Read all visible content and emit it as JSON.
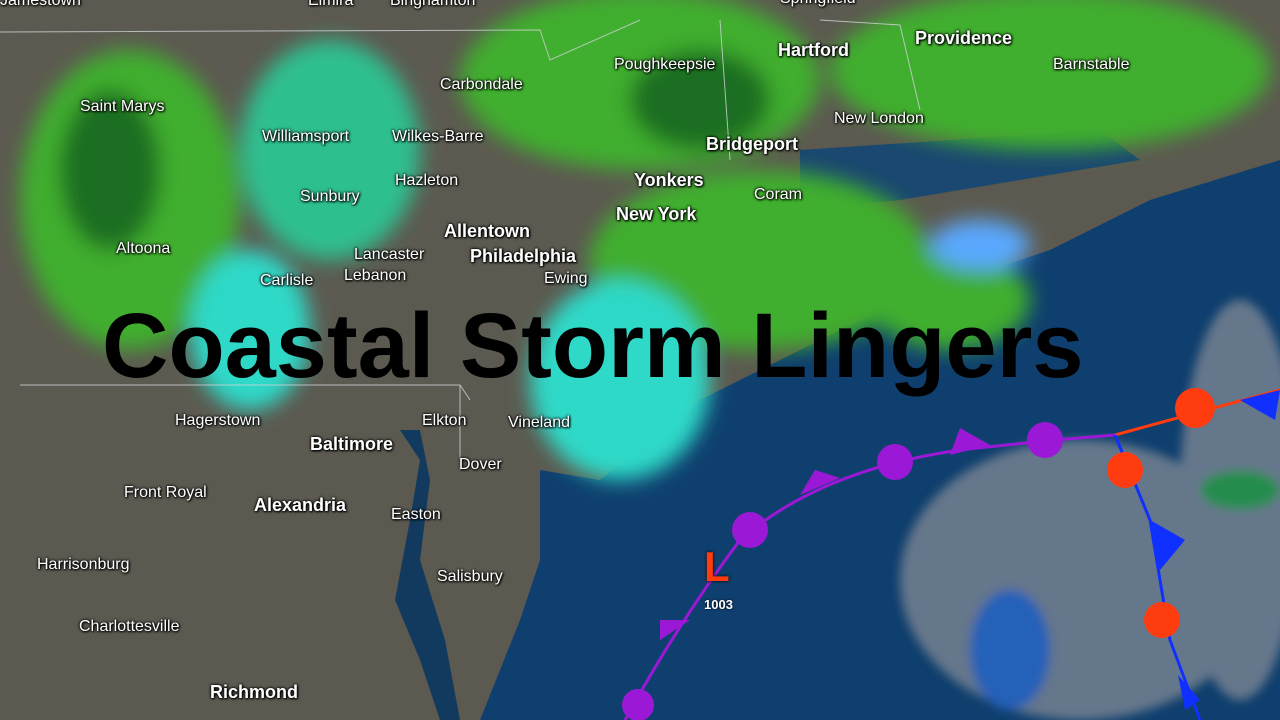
{
  "title": "Coastal Storm Lingers",
  "low_pressure": {
    "symbol": "L",
    "pressure": "1003",
    "color": "#ff3b10"
  },
  "colors": {
    "land": "#5c5a50",
    "ocean": "#0f3f6e",
    "occluded_front": "#9b19d6",
    "warm_front": "#ff3b10",
    "cold_front": "#1030ff",
    "radar_light": "#2fd9c8",
    "radar_moderate": "#3fae2f",
    "radar_heavy": "#1f6e20"
  },
  "cities": [
    {
      "name": "Jamestown",
      "major": false
    },
    {
      "name": "Elmira",
      "major": false
    },
    {
      "name": "Binghamton",
      "major": false
    },
    {
      "name": "Springfield",
      "major": false
    },
    {
      "name": "Hartford",
      "major": true
    },
    {
      "name": "Providence",
      "major": true
    },
    {
      "name": "Barnstable",
      "major": false
    },
    {
      "name": "Poughkeepsie",
      "major": false
    },
    {
      "name": "Carbondale",
      "major": false
    },
    {
      "name": "Saint Marys",
      "major": false
    },
    {
      "name": "Williamsport",
      "major": false
    },
    {
      "name": "Wilkes-Barre",
      "major": false
    },
    {
      "name": "Hazleton",
      "major": false
    },
    {
      "name": "Sunbury",
      "major": false
    },
    {
      "name": "Bridgeport",
      "major": true
    },
    {
      "name": "New London",
      "major": false
    },
    {
      "name": "Yonkers",
      "major": true
    },
    {
      "name": "Coram",
      "major": false
    },
    {
      "name": "New York",
      "major": true
    },
    {
      "name": "Allentown",
      "major": true
    },
    {
      "name": "Altoona",
      "major": false
    },
    {
      "name": "Lebanon",
      "major": false
    },
    {
      "name": "Carlisle",
      "major": false
    },
    {
      "name": "Ewing",
      "major": false
    },
    {
      "name": "Lancaster",
      "major": false
    },
    {
      "name": "Philadelphia",
      "major": true
    },
    {
      "name": "Hagerstown",
      "major": false
    },
    {
      "name": "Elkton",
      "major": false
    },
    {
      "name": "Vineland",
      "major": false
    },
    {
      "name": "Baltimore",
      "major": true
    },
    {
      "name": "Dover",
      "major": false
    },
    {
      "name": "Front Royal",
      "major": false
    },
    {
      "name": "Alexandria",
      "major": true
    },
    {
      "name": "Easton",
      "major": false
    },
    {
      "name": "Harrisonburg",
      "major": false
    },
    {
      "name": "Salisbury",
      "major": false
    },
    {
      "name": "Charlottesville",
      "major": false
    },
    {
      "name": "Richmond",
      "major": true
    }
  ]
}
